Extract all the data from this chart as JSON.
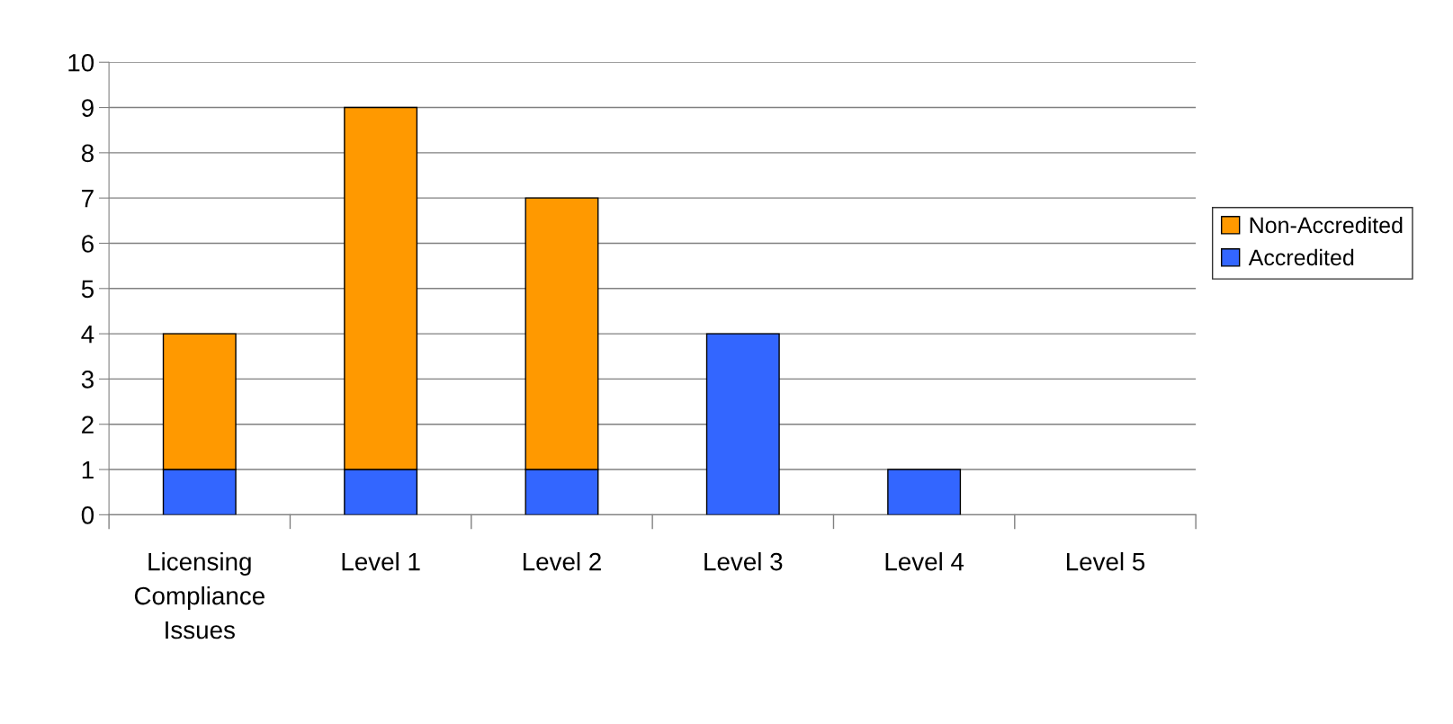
{
  "chart_data": {
    "type": "bar",
    "stacked": true,
    "categories": [
      "Licensing\nCompliance\nIssues",
      "Level 1",
      "Level 2",
      "Level 3",
      "Level 4",
      "Level 5"
    ],
    "series": [
      {
        "name": "Accredited",
        "color": "#3366ff",
        "values": [
          1,
          1,
          1,
          4,
          1,
          0
        ]
      },
      {
        "name": "Non-Accredited",
        "color": "#ff9900",
        "values": [
          3,
          8,
          6,
          0,
          0,
          0
        ]
      }
    ],
    "ylim": [
      0,
      10
    ],
    "yticks": [
      0,
      1,
      2,
      3,
      4,
      5,
      6,
      7,
      8,
      9,
      10
    ],
    "grid": "y",
    "legend": "right"
  }
}
